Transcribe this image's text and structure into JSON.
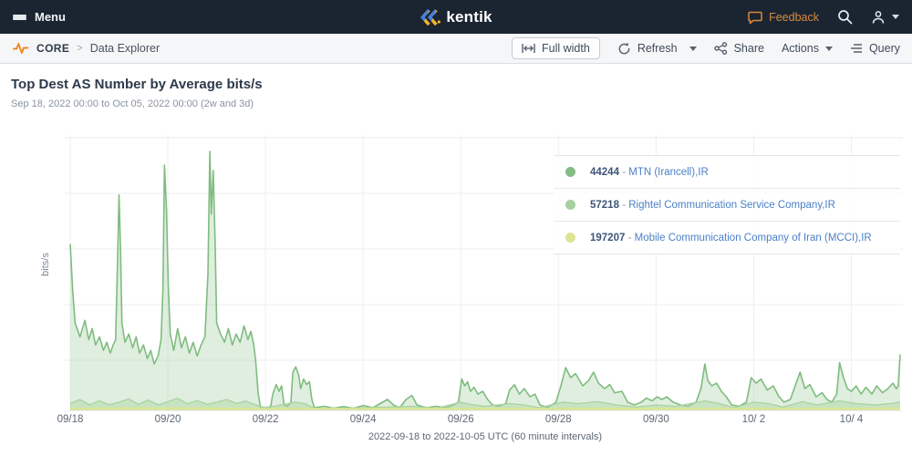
{
  "header": {
    "menu_label": "Menu",
    "logo_text": "kentik",
    "feedback_label": "Feedback"
  },
  "toolbar": {
    "breadcrumb": {
      "section": "CORE",
      "separator": ">",
      "page": "Data Explorer"
    },
    "buttons": {
      "full_width": "Full width",
      "refresh": "Refresh",
      "share": "Share",
      "actions": "Actions",
      "query": "Query"
    }
  },
  "main": {
    "title": "Top Dest AS Number by Average bits/s",
    "subtitle": "Sep 18, 2022 00:00 to Oct 05, 2022 00:00 (2w and 3d)"
  },
  "chart_data": {
    "type": "area",
    "title": "Top Dest AS Number by Average bits/s",
    "ylabel": "bits/s",
    "caption": "2022-09-18 to 2022-10-05 UTC (60 minute intervals)",
    "grid": true,
    "legend_position": "top-right",
    "x_axis": {
      "tick_labels": [
        "09/18",
        "09/20",
        "09/22",
        "09/24",
        "09/26",
        "09/28",
        "09/30",
        "10/ 2",
        "10/ 4"
      ],
      "tick_day_offsets": [
        0,
        2,
        4,
        6,
        8,
        10,
        12,
        14,
        16
      ],
      "range_days": 17
    },
    "y_axis": {
      "label": "bits/s",
      "numeric_tick_labels_shown": false
    },
    "value_scale": "percent of plot height (no numeric y-axis labels visible in screenshot)",
    "legend": [
      {
        "as_number": "44244",
        "dash": "-",
        "name": "MTN (Irancell),IR",
        "color": "#85bb85"
      },
      {
        "as_number": "57218",
        "dash": "-",
        "name": "Rightel Communication Service Company,IR",
        "color": "#a8cfa0"
      },
      {
        "as_number": "197207",
        "dash": "-",
        "name": "Mobile Communication Company of Iran (MCCI),IR",
        "color": "#dde593"
      }
    ],
    "series": [
      {
        "name": "44244 - MTN (Irancell),IR",
        "line_color": "#7fbc7f",
        "fill_color": "rgba(150,200,150,0.30)",
        "points": [
          [
            0,
            61
          ],
          [
            0.05,
            44
          ],
          [
            0.1,
            32
          ],
          [
            0.2,
            27
          ],
          [
            0.3,
            33
          ],
          [
            0.38,
            26
          ],
          [
            0.45,
            30
          ],
          [
            0.52,
            24
          ],
          [
            0.6,
            27
          ],
          [
            0.68,
            22
          ],
          [
            0.75,
            25
          ],
          [
            0.82,
            21
          ],
          [
            0.88,
            24
          ],
          [
            0.93,
            26
          ],
          [
            0.97,
            55
          ],
          [
            1.0,
            79
          ],
          [
            1.03,
            60
          ],
          [
            1.06,
            32
          ],
          [
            1.12,
            25
          ],
          [
            1.2,
            28
          ],
          [
            1.28,
            23
          ],
          [
            1.35,
            27
          ],
          [
            1.42,
            21
          ],
          [
            1.5,
            24
          ],
          [
            1.58,
            19
          ],
          [
            1.65,
            22
          ],
          [
            1.72,
            17
          ],
          [
            1.8,
            20
          ],
          [
            1.86,
            26
          ],
          [
            1.9,
            45
          ],
          [
            1.93,
            90
          ],
          [
            1.97,
            74
          ],
          [
            2.01,
            45
          ],
          [
            2.05,
            28
          ],
          [
            2.12,
            22
          ],
          [
            2.2,
            30
          ],
          [
            2.28,
            23
          ],
          [
            2.36,
            27
          ],
          [
            2.44,
            21
          ],
          [
            2.52,
            25
          ],
          [
            2.6,
            20
          ],
          [
            2.68,
            24
          ],
          [
            2.76,
            27
          ],
          [
            2.82,
            50
          ],
          [
            2.86,
            95
          ],
          [
            2.89,
            72
          ],
          [
            2.93,
            88
          ],
          [
            2.97,
            60
          ],
          [
            3.0,
            32
          ],
          [
            3.08,
            28
          ],
          [
            3.16,
            25
          ],
          [
            3.24,
            30
          ],
          [
            3.32,
            24
          ],
          [
            3.4,
            28
          ],
          [
            3.48,
            25
          ],
          [
            3.56,
            31
          ],
          [
            3.64,
            26
          ],
          [
            3.7,
            29
          ],
          [
            3.76,
            24
          ],
          [
            3.8,
            18
          ],
          [
            3.85,
            6
          ],
          [
            3.9,
            1
          ],
          [
            4.0,
            0.6
          ],
          [
            4.1,
            1
          ],
          [
            4.15,
            6
          ],
          [
            4.22,
            9.5
          ],
          [
            4.28,
            7
          ],
          [
            4.33,
            9
          ],
          [
            4.38,
            2
          ],
          [
            4.45,
            1.5
          ],
          [
            4.52,
            3
          ],
          [
            4.56,
            14
          ],
          [
            4.62,
            16
          ],
          [
            4.68,
            13
          ],
          [
            4.72,
            8
          ],
          [
            4.78,
            11.5
          ],
          [
            4.84,
            9.5
          ],
          [
            4.9,
            10.5
          ],
          [
            4.95,
            4
          ],
          [
            5.0,
            1
          ],
          [
            5.2,
            1.5
          ],
          [
            5.4,
            0.8
          ],
          [
            5.6,
            1.4
          ],
          [
            5.8,
            0.8
          ],
          [
            6.0,
            1.8
          ],
          [
            6.2,
            1
          ],
          [
            6.35,
            2.5
          ],
          [
            6.5,
            4
          ],
          [
            6.62,
            2
          ],
          [
            6.75,
            1
          ],
          [
            6.88,
            4
          ],
          [
            7.0,
            5.5
          ],
          [
            7.1,
            2
          ],
          [
            7.3,
            1
          ],
          [
            7.5,
            1.5
          ],
          [
            7.7,
            1
          ],
          [
            7.85,
            2
          ],
          [
            7.95,
            3
          ],
          [
            8.02,
            11.5
          ],
          [
            8.08,
            9
          ],
          [
            8.14,
            10.5
          ],
          [
            8.2,
            7
          ],
          [
            8.27,
            8.5
          ],
          [
            8.35,
            6
          ],
          [
            8.45,
            7
          ],
          [
            8.55,
            4
          ],
          [
            8.65,
            2
          ],
          [
            8.78,
            1.5
          ],
          [
            8.92,
            2.5
          ],
          [
            9.0,
            7.5
          ],
          [
            9.1,
            9.4
          ],
          [
            9.2,
            6
          ],
          [
            9.3,
            8
          ],
          [
            9.42,
            5
          ],
          [
            9.52,
            6
          ],
          [
            9.62,
            2
          ],
          [
            9.78,
            1
          ],
          [
            9.95,
            3
          ],
          [
            10.05,
            9
          ],
          [
            10.15,
            15.7
          ],
          [
            10.25,
            12
          ],
          [
            10.35,
            13.5
          ],
          [
            10.5,
            9
          ],
          [
            10.62,
            11
          ],
          [
            10.72,
            14
          ],
          [
            10.82,
            10
          ],
          [
            10.95,
            8
          ],
          [
            11.05,
            9.5
          ],
          [
            11.15,
            6.5
          ],
          [
            11.3,
            7
          ],
          [
            11.42,
            3
          ],
          [
            11.55,
            2
          ],
          [
            11.7,
            3
          ],
          [
            11.8,
            4.5
          ],
          [
            11.92,
            3.5
          ],
          [
            12.02,
            5
          ],
          [
            12.12,
            4
          ],
          [
            12.22,
            5
          ],
          [
            12.35,
            3
          ],
          [
            12.5,
            2
          ],
          [
            12.65,
            1.5
          ],
          [
            12.82,
            3
          ],
          [
            12.92,
            8
          ],
          [
            13.0,
            17
          ],
          [
            13.06,
            11
          ],
          [
            13.14,
            9
          ],
          [
            13.24,
            10
          ],
          [
            13.34,
            7
          ],
          [
            13.44,
            5
          ],
          [
            13.55,
            2
          ],
          [
            13.7,
            1.5
          ],
          [
            13.85,
            3
          ],
          [
            13.95,
            12
          ],
          [
            14.05,
            10
          ],
          [
            14.15,
            11.5
          ],
          [
            14.28,
            7.5
          ],
          [
            14.4,
            9
          ],
          [
            14.52,
            5
          ],
          [
            14.62,
            3
          ],
          [
            14.75,
            4
          ],
          [
            14.85,
            9
          ],
          [
            14.95,
            14
          ],
          [
            15.05,
            8
          ],
          [
            15.15,
            9.5
          ],
          [
            15.28,
            5
          ],
          [
            15.4,
            6.5
          ],
          [
            15.5,
            4
          ],
          [
            15.6,
            3
          ],
          [
            15.7,
            6
          ],
          [
            15.76,
            17.5
          ],
          [
            15.84,
            12
          ],
          [
            15.92,
            8
          ],
          [
            16.0,
            7
          ],
          [
            16.1,
            9
          ],
          [
            16.2,
            6
          ],
          [
            16.3,
            8.5
          ],
          [
            16.42,
            6
          ],
          [
            16.52,
            9
          ],
          [
            16.64,
            6.5
          ],
          [
            16.75,
            8
          ],
          [
            16.85,
            10
          ],
          [
            16.92,
            8
          ],
          [
            16.96,
            9
          ],
          [
            17,
            20.5
          ]
        ]
      },
      {
        "name": "57218 - Rightel Communication Service Company,IR",
        "line_color": "#a9d3a0",
        "fill_color": "rgba(170,212,160,0.45)",
        "points": [
          [
            0,
            2.5
          ],
          [
            0.2,
            4
          ],
          [
            0.4,
            2
          ],
          [
            0.6,
            3.5
          ],
          [
            0.8,
            2
          ],
          [
            1.0,
            3
          ],
          [
            1.2,
            4.2
          ],
          [
            1.4,
            2.2
          ],
          [
            1.6,
            3.8
          ],
          [
            1.8,
            2
          ],
          [
            2.0,
            3.2
          ],
          [
            2.2,
            4.4
          ],
          [
            2.4,
            2.4
          ],
          [
            2.6,
            3.6
          ],
          [
            2.8,
            2.2
          ],
          [
            3.0,
            3
          ],
          [
            3.2,
            4
          ],
          [
            3.4,
            2.6
          ],
          [
            3.6,
            3.4
          ],
          [
            3.8,
            2
          ],
          [
            3.95,
            1.2
          ],
          [
            4.2,
            1.5
          ],
          [
            4.6,
            3
          ],
          [
            4.8,
            2.5
          ],
          [
            5.0,
            0.8
          ],
          [
            5.5,
            0.8
          ],
          [
            6.0,
            1
          ],
          [
            6.5,
            1.2
          ],
          [
            7.0,
            1.5
          ],
          [
            7.5,
            0.8
          ],
          [
            8.0,
            3
          ],
          [
            8.2,
            2.2
          ],
          [
            8.5,
            1.5
          ],
          [
            9.0,
            2.5
          ],
          [
            9.3,
            2
          ],
          [
            9.6,
            1
          ],
          [
            10.1,
            3
          ],
          [
            10.4,
            2.5
          ],
          [
            10.8,
            3.2
          ],
          [
            11.2,
            2
          ],
          [
            11.6,
            1.2
          ],
          [
            12.0,
            2
          ],
          [
            12.4,
            1.5
          ],
          [
            13.0,
            3.5
          ],
          [
            13.3,
            2.5
          ],
          [
            13.6,
            1
          ],
          [
            14.0,
            3
          ],
          [
            14.3,
            2.5
          ],
          [
            14.6,
            1.2
          ],
          [
            15.0,
            3.2
          ],
          [
            15.3,
            2
          ],
          [
            15.76,
            3.5
          ],
          [
            16.1,
            2.5
          ],
          [
            16.5,
            2
          ],
          [
            16.8,
            2.5
          ],
          [
            17,
            3
          ]
        ]
      },
      {
        "name": "197207 - Mobile Communication Company of Iran (MCCI),IR",
        "line_color": "#dde58f",
        "fill_color": "rgba(223,231,148,0.55)",
        "points": [
          [
            0,
            0.8
          ],
          [
            2,
            0.9
          ],
          [
            4,
            0.7
          ],
          [
            6,
            0.7
          ],
          [
            8,
            0.8
          ],
          [
            10,
            0.7
          ],
          [
            12,
            0.8
          ],
          [
            14,
            0.7
          ],
          [
            16,
            0.8
          ],
          [
            17,
            0.9
          ]
        ]
      }
    ]
  }
}
